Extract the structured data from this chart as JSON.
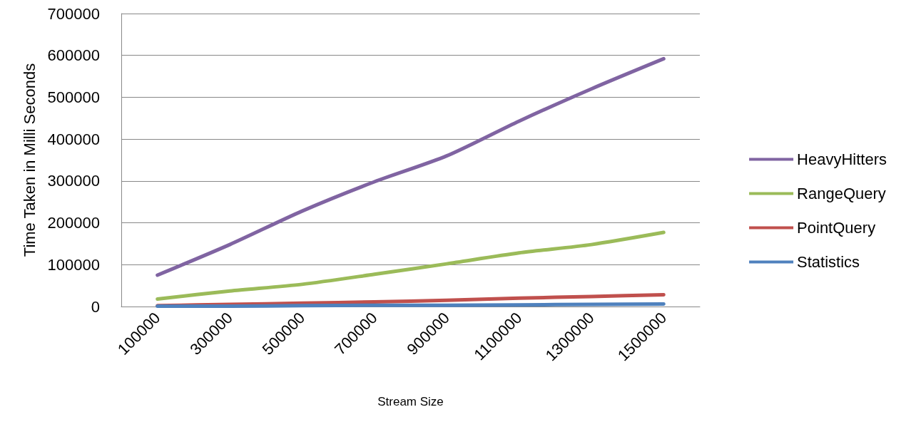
{
  "chart_data": {
    "type": "line",
    "xlabel": "Stream Size",
    "ylabel": "Time Taken in Milli Seconds",
    "categories": [
      "100000",
      "300000",
      "500000",
      "700000",
      "900000",
      "1100000",
      "1300000",
      "1500000"
    ],
    "series": [
      {
        "name": "HeavyHitters",
        "color": "#8064a2",
        "values": [
          75000,
          148000,
          228000,
          298000,
          360000,
          443000,
          520000,
          592000
        ]
      },
      {
        "name": "RangeQuery",
        "color": "#9bbb59",
        "values": [
          18000,
          37000,
          53000,
          77000,
          102000,
          128000,
          148000,
          177000
        ]
      },
      {
        "name": "PointQuery",
        "color": "#c0504d",
        "values": [
          2000,
          5000,
          8000,
          11000,
          15000,
          20000,
          24000,
          28000
        ]
      },
      {
        "name": "Statistics",
        "color": "#4f81bd",
        "values": [
          1000,
          1000,
          2000,
          3000,
          3000,
          4000,
          5000,
          6000
        ]
      }
    ],
    "ylim": [
      0,
      700000
    ],
    "yticks": [
      0,
      100000,
      200000,
      300000,
      400000,
      500000,
      600000,
      700000
    ],
    "grid": "y",
    "legend": "right",
    "marker": "none",
    "line_style": "solid"
  }
}
